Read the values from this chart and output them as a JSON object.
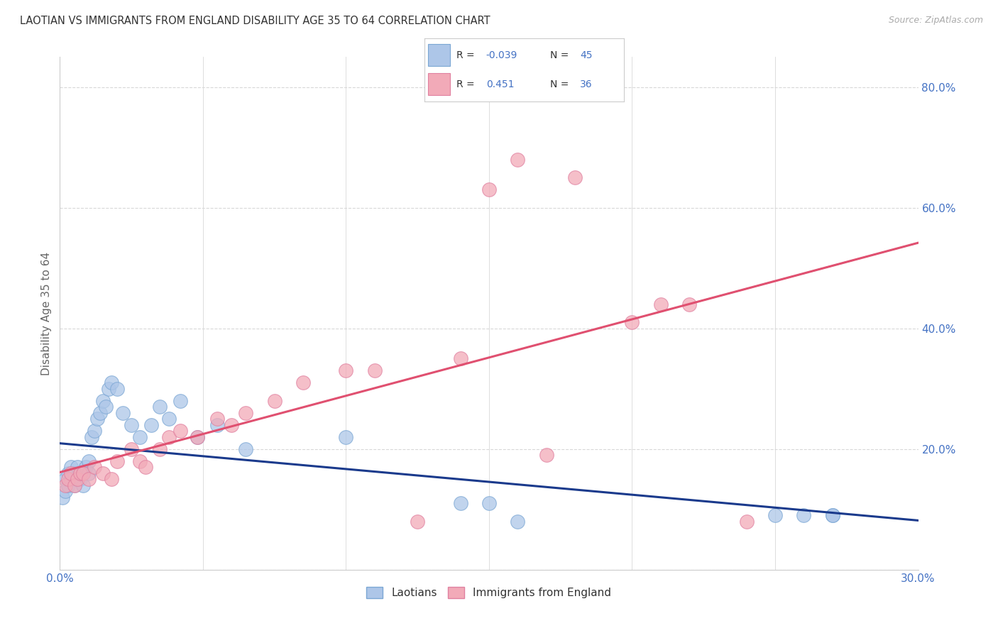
{
  "title": "LAOTIAN VS IMMIGRANTS FROM ENGLAND DISABILITY AGE 35 TO 64 CORRELATION CHART",
  "source": "Source: ZipAtlas.com",
  "ylabel_text": "Disability Age 35 to 64",
  "xlim": [
    0.0,
    0.3
  ],
  "ylim": [
    0.0,
    0.85
  ],
  "xticks": [
    0.0,
    0.05,
    0.1,
    0.15,
    0.2,
    0.25,
    0.3
  ],
  "yticks": [
    0.0,
    0.2,
    0.4,
    0.6,
    0.8
  ],
  "background_color": "#ffffff",
  "grid_color": "#d8d8d8",
  "axis_color": "#4472c4",
  "laotian_color": "#adc6e8",
  "laotian_edge_color": "#7ba7d4",
  "england_color": "#f2aab8",
  "england_edge_color": "#e080a0",
  "laotian_line_color": "#1a3a8c",
  "england_line_color": "#e05070",
  "dashed_line_color": "#c0b0b8",
  "laotian_R": -0.039,
  "laotian_N": 45,
  "england_R": 0.451,
  "england_N": 36,
  "laotian_scatter_x": [
    0.001,
    0.002,
    0.002,
    0.003,
    0.003,
    0.004,
    0.004,
    0.005,
    0.005,
    0.006,
    0.006,
    0.007,
    0.007,
    0.008,
    0.008,
    0.009,
    0.01,
    0.01,
    0.011,
    0.012,
    0.013,
    0.014,
    0.015,
    0.016,
    0.017,
    0.018,
    0.02,
    0.022,
    0.025,
    0.028,
    0.032,
    0.035,
    0.038,
    0.042,
    0.048,
    0.055,
    0.065,
    0.1,
    0.14,
    0.15,
    0.16,
    0.25,
    0.26,
    0.27,
    0.27
  ],
  "laotian_scatter_y": [
    0.12,
    0.13,
    0.15,
    0.14,
    0.16,
    0.15,
    0.17,
    0.14,
    0.16,
    0.15,
    0.17,
    0.15,
    0.16,
    0.16,
    0.14,
    0.17,
    0.18,
    0.16,
    0.22,
    0.23,
    0.25,
    0.26,
    0.28,
    0.27,
    0.3,
    0.31,
    0.3,
    0.26,
    0.24,
    0.22,
    0.24,
    0.27,
    0.25,
    0.28,
    0.22,
    0.24,
    0.2,
    0.22,
    0.11,
    0.11,
    0.08,
    0.09,
    0.09,
    0.09,
    0.09
  ],
  "england_scatter_x": [
    0.002,
    0.003,
    0.004,
    0.005,
    0.006,
    0.007,
    0.008,
    0.01,
    0.012,
    0.015,
    0.018,
    0.02,
    0.025,
    0.028,
    0.03,
    0.035,
    0.038,
    0.042,
    0.048,
    0.055,
    0.06,
    0.065,
    0.075,
    0.085,
    0.1,
    0.11,
    0.14,
    0.15,
    0.16,
    0.18,
    0.2,
    0.21,
    0.22,
    0.17,
    0.125,
    0.24
  ],
  "england_scatter_y": [
    0.14,
    0.15,
    0.16,
    0.14,
    0.15,
    0.16,
    0.16,
    0.15,
    0.17,
    0.16,
    0.15,
    0.18,
    0.2,
    0.18,
    0.17,
    0.2,
    0.22,
    0.23,
    0.22,
    0.25,
    0.24,
    0.26,
    0.28,
    0.31,
    0.33,
    0.33,
    0.35,
    0.63,
    0.68,
    0.65,
    0.41,
    0.44,
    0.44,
    0.19,
    0.08,
    0.08
  ]
}
